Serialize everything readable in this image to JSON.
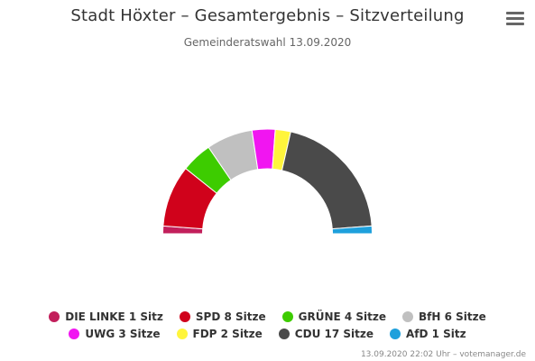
{
  "title": "Stadt Höxter – Gesamtergebnis – Sitzverteilung",
  "subtitle": "Gemeinderatswahl 13.09.2020",
  "credits": "13.09.2020 22:02 Uhr – votemanager.de",
  "chart_data": {
    "type": "parliament-semicircle",
    "total_seats": 42,
    "series": [
      {
        "name": "DIE LINKE",
        "seats": 1,
        "color": "#c21f5b",
        "legend": "DIE LINKE 1 Sitz"
      },
      {
        "name": "SPD",
        "seats": 8,
        "color": "#d0021b",
        "legend": "SPD 8 Sitze"
      },
      {
        "name": "GRÜNE",
        "seats": 4,
        "color": "#3dcc00",
        "legend": "GRÜNE 4 Sitze"
      },
      {
        "name": "BfH",
        "seats": 6,
        "color": "#c0c0c0",
        "legend": "BfH 6 Sitze"
      },
      {
        "name": "UWG",
        "seats": 3,
        "color": "#f115f1",
        "legend": "UWG 3 Sitze"
      },
      {
        "name": "FDP",
        "seats": 2,
        "color": "#fff53c",
        "legend": "FDP 2 Sitze"
      },
      {
        "name": "CDU",
        "seats": 17,
        "color": "#4a4a4a",
        "legend": "CDU 17 Sitze"
      },
      {
        "name": "AfD",
        "seats": 1,
        "color": "#1ea0dc",
        "legend": "AfD 1 Sitz"
      }
    ],
    "legend_rows": [
      [
        0,
        1,
        2,
        3
      ],
      [
        4,
        5,
        6,
        7
      ]
    ]
  }
}
